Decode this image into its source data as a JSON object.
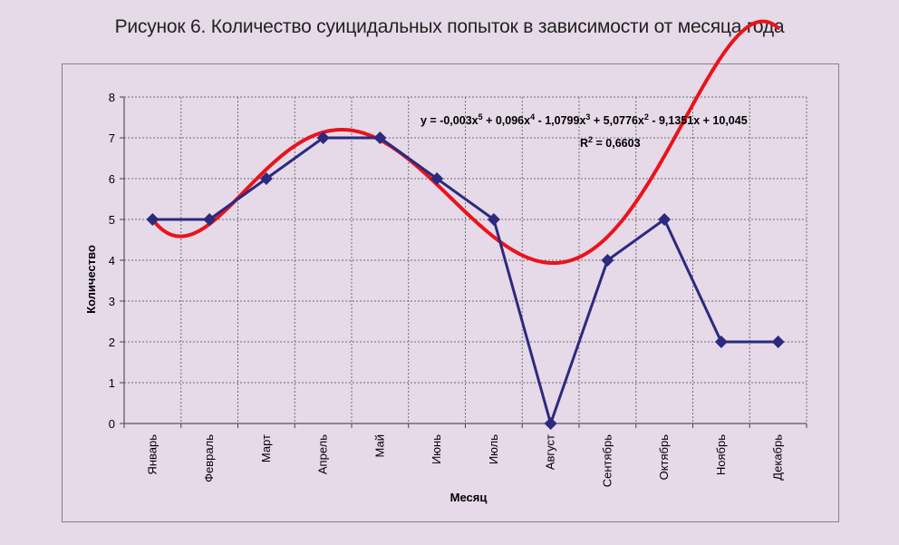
{
  "figure_title": "Рисунок 6. Количество суицидальных попыток в зависимости от месяца года",
  "chart_data": {
    "type": "line",
    "title": "Рисунок 6. Количество суицидальных попыток в зависимости от месяца года",
    "xlabel": "Месяц",
    "ylabel": "Количество",
    "categories": [
      "Январь",
      "Февраль",
      "Март",
      "Апрель",
      "Май",
      "Июнь",
      "Июль",
      "Август",
      "Сентябрь",
      "Октябрь",
      "Ноябрь",
      "Декабрь"
    ],
    "series": [
      {
        "values": [
          5,
          5,
          6,
          7,
          7,
          6,
          5,
          0,
          4,
          5,
          2,
          2
        ],
        "color": "#2b2a7e",
        "marker": "diamond"
      }
    ],
    "trendline": {
      "type": "polynomial",
      "order": 5,
      "coefficients": [
        -0.003,
        0.096,
        -1.0799,
        5.0776,
        -9.1351,
        10.045
      ],
      "color": "#e8141c",
      "equation_text": {
        "prefix": "y = -0,003x",
        "e5": "5",
        "t4": " + 0,096x",
        "e4": "4",
        "t3": " - 1,0799x",
        "e3": "3",
        "t2": " + 5,0776x",
        "e2": "2",
        "t1": " - 9,1351x + 10,045"
      },
      "r2_text": {
        "r": "R",
        "sup": "2",
        "value": " = 0,6603"
      }
    },
    "ylim": [
      0,
      8
    ],
    "yticks": [
      0,
      1,
      2,
      3,
      4,
      5,
      6,
      7,
      8
    ],
    "grid": true,
    "legend": "none",
    "background": "#e6d9e8"
  }
}
